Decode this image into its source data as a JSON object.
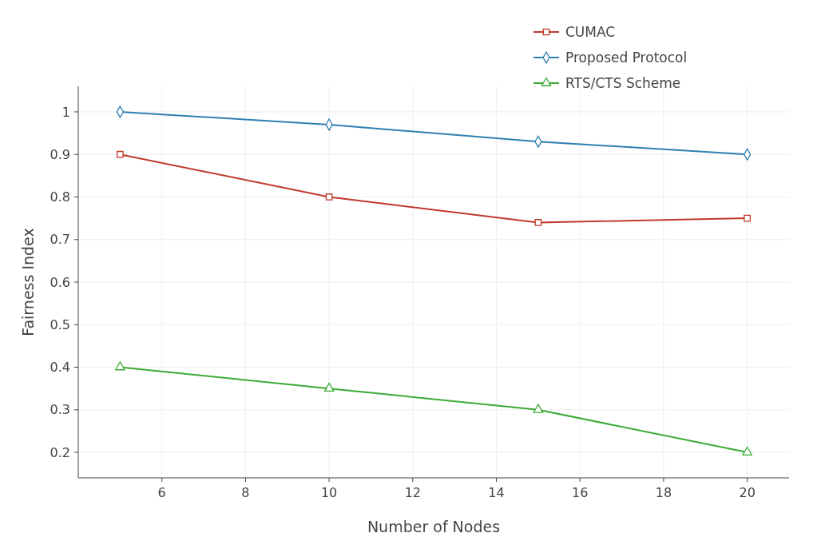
{
  "chart_data": {
    "type": "line",
    "xlabel": "Number of Nodes",
    "ylabel": "Fairness Index",
    "x": [
      5,
      10,
      15,
      20
    ],
    "series": [
      {
        "name": "CUMAC",
        "color": "#c0392b",
        "marker": "square",
        "values": [
          0.9,
          0.8,
          0.74,
          0.75
        ]
      },
      {
        "name": "Proposed Protocol",
        "color": "#2e7fb0",
        "marker": "diamond",
        "values": [
          1,
          0.97,
          0.93,
          0.9
        ]
      },
      {
        "name": "RTS/CTS Scheme",
        "color": "#3aaa35",
        "marker": "triangle",
        "values": [
          0.4,
          0.35,
          0.3,
          0.2
        ]
      }
    ],
    "xlim": [
      4,
      21
    ],
    "xticks": [
      6,
      8,
      10,
      12,
      14,
      16,
      18,
      20
    ],
    "ylim": [
      0.14,
      1.06
    ],
    "yticks": [
      0.2,
      0.3,
      0.4,
      0.5,
      0.6,
      0.7,
      0.8,
      0.9,
      1
    ],
    "grid": true,
    "legend": "top right"
  }
}
